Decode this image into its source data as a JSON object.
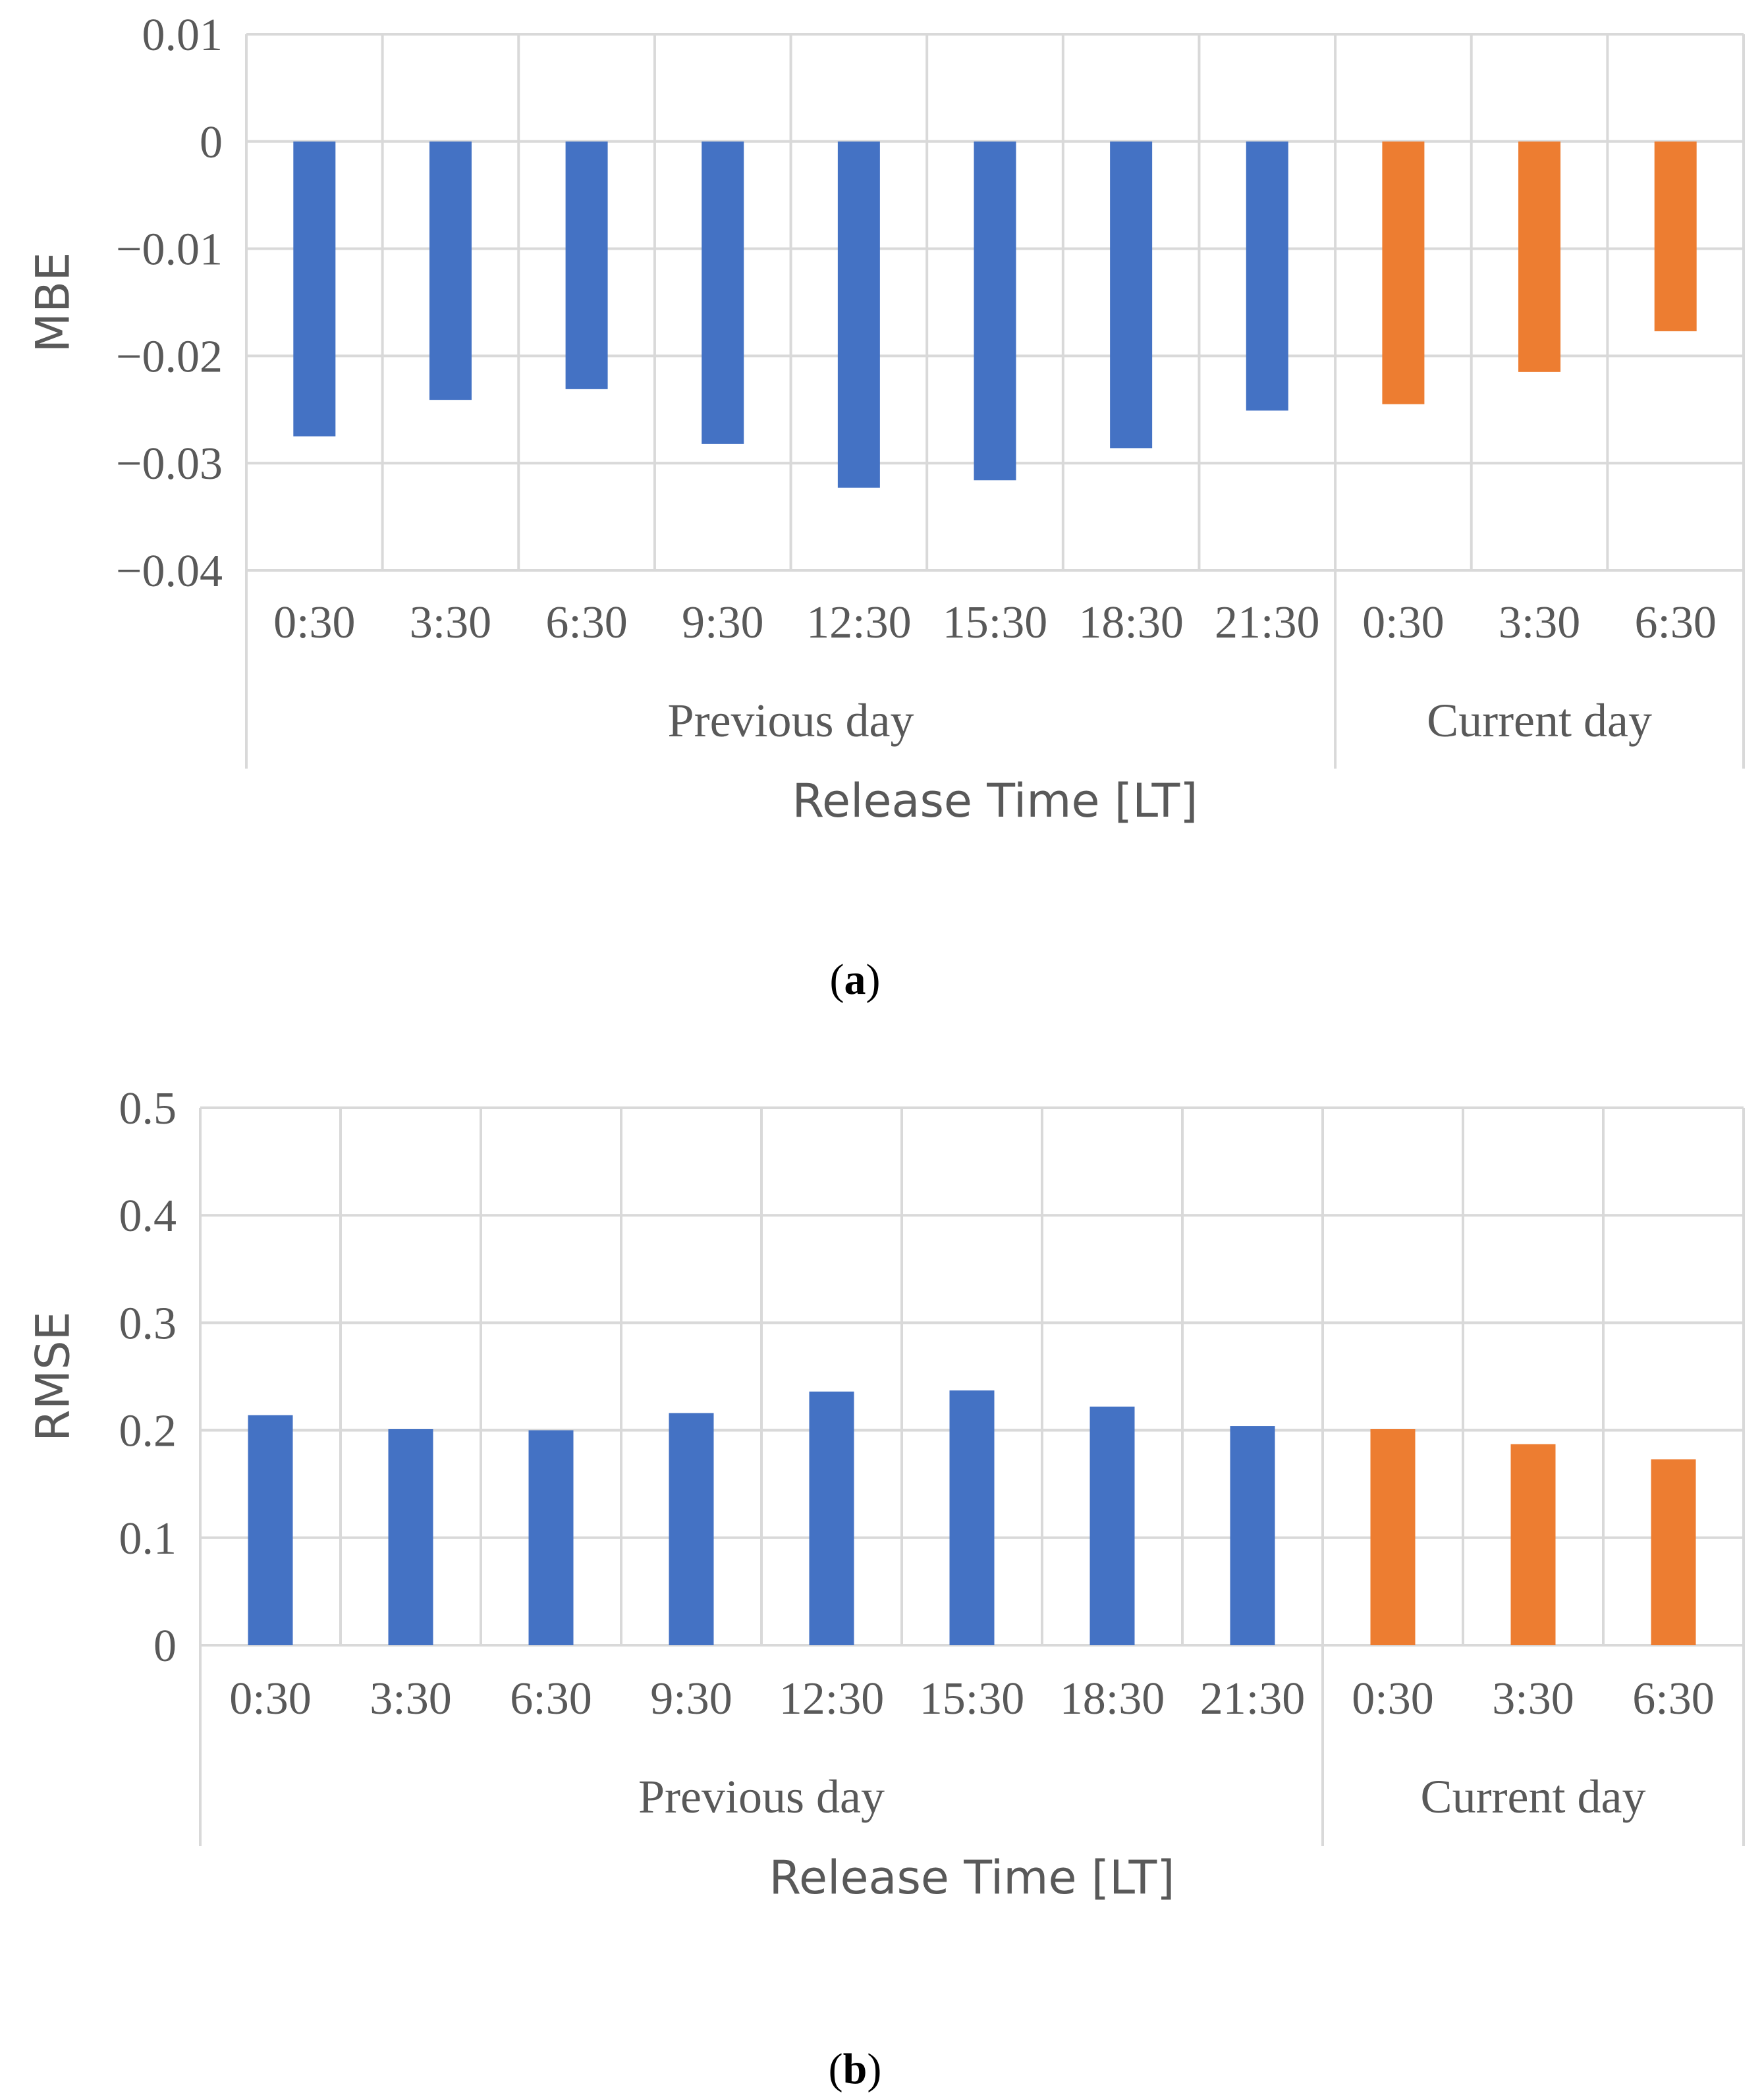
{
  "colors": {
    "previous_day": "#4472C4",
    "current_day": "#ED7D31",
    "grid": "#D9D9D9",
    "text": "#595959"
  },
  "chart_data": [
    {
      "type": "bar",
      "caption": "a",
      "ylabel": "MBE",
      "xlabel": "Release Time [LT]",
      "ylim": [
        -0.04,
        0.01
      ],
      "y_ticks": [
        0.01,
        0,
        -0.01,
        -0.02,
        -0.03,
        -0.04
      ],
      "y_tick_labels": [
        "0.01",
        "0",
        "−0.01",
        "−0.02",
        "−0.03",
        "−0.04"
      ],
      "categories": [
        "0:30",
        "3:30",
        "6:30",
        "9:30",
        "12:30",
        "15:30",
        "18:30",
        "21:30",
        "0:30",
        "3:30",
        "6:30"
      ],
      "groups": [
        {
          "label": "Previous day",
          "count": 8
        },
        {
          "label": "Current day",
          "count": 3
        }
      ],
      "values": [
        -0.0275,
        -0.0241,
        -0.0231,
        -0.0282,
        -0.0323,
        -0.0316,
        -0.0286,
        -0.0251,
        -0.0245,
        -0.0215,
        -0.0177
      ],
      "grid": true
    },
    {
      "type": "bar",
      "caption": "b",
      "ylabel": "RMSE",
      "xlabel": "Release Time [LT]",
      "ylim": [
        0,
        0.5
      ],
      "y_ticks": [
        0.5,
        0.4,
        0.3,
        0.2,
        0.1,
        0
      ],
      "y_tick_labels": [
        "0.5",
        "0.4",
        "0.3",
        "0.2",
        "0.1",
        "0"
      ],
      "categories": [
        "0:30",
        "3:30",
        "6:30",
        "9:30",
        "12:30",
        "15:30",
        "18:30",
        "21:30",
        "0:30",
        "3:30",
        "6:30"
      ],
      "groups": [
        {
          "label": "Previous day",
          "count": 8
        },
        {
          "label": "Current day",
          "count": 3
        }
      ],
      "values": [
        0.214,
        0.201,
        0.2,
        0.216,
        0.236,
        0.237,
        0.222,
        0.204,
        0.201,
        0.187,
        0.173
      ],
      "grid": true
    }
  ]
}
